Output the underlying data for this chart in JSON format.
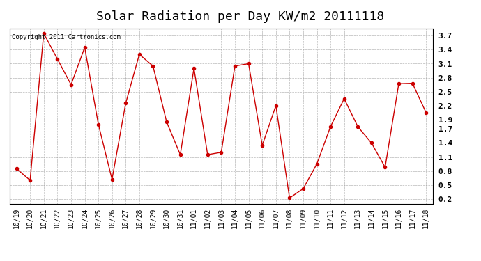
{
  "title": "Solar Radiation per Day KW/m2 20111118",
  "copyright_text": "Copyright 2011 Cartronics.com",
  "labels": [
    "10/19",
    "10/20",
    "10/21",
    "10/22",
    "10/23",
    "10/24",
    "10/25",
    "10/26",
    "10/27",
    "10/28",
    "10/29",
    "10/30",
    "10/31",
    "11/01",
    "11/02",
    "11/03",
    "11/04",
    "11/05",
    "11/06",
    "11/07",
    "11/08",
    "11/09",
    "11/10",
    "11/11",
    "11/12",
    "11/13",
    "11/14",
    "11/15",
    "11/16",
    "11/17",
    "11/18"
  ],
  "values": [
    0.85,
    0.6,
    3.75,
    3.2,
    2.65,
    3.45,
    1.8,
    0.62,
    2.25,
    3.3,
    3.05,
    1.85,
    1.15,
    3.0,
    1.15,
    1.2,
    3.05,
    3.1,
    1.35,
    2.2,
    0.22,
    0.42,
    0.95,
    1.75,
    2.35,
    1.75,
    1.4,
    0.88,
    2.67,
    2.68,
    2.05
  ],
  "line_color": "#cc0000",
  "marker": "o",
  "marker_size": 3,
  "marker_color": "#cc0000",
  "bg_color": "#ffffff",
  "plot_bg_color": "#ffffff",
  "grid_color": "#999999",
  "ylim": [
    0.1,
    3.85
  ],
  "yticks": [
    0.2,
    0.5,
    0.8,
    1.1,
    1.4,
    1.7,
    1.9,
    2.2,
    2.5,
    2.8,
    3.1,
    3.4,
    3.7
  ],
  "ytick_labels": [
    "0.2",
    "0.5",
    "0.8",
    "1.1",
    "1.4",
    "1.7",
    "1.9",
    "2.2",
    "2.5",
    "2.8",
    "3.1",
    "3.4",
    "3.7"
  ],
  "title_fontsize": 13,
  "tick_fontsize": 7,
  "copyright_fontsize": 6.5
}
